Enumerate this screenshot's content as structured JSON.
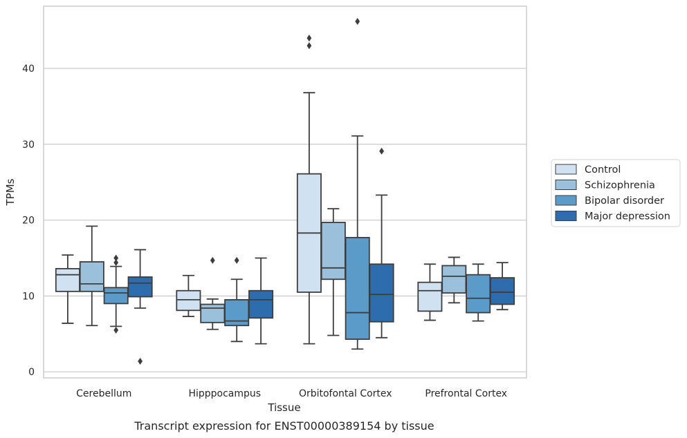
{
  "chart_data": {
    "type": "boxplot",
    "title": "",
    "caption": "Transcript expression for ENST00000389154 by tissue",
    "xlabel": "Tissue",
    "ylabel": "TPMs",
    "ylim": [
      -0.8,
      48.2
    ],
    "yticks": [
      0,
      10,
      20,
      30,
      40
    ],
    "grid": "horizontal",
    "legend_position": "right",
    "categories": [
      "Cerebellum",
      "Hipppocampus",
      "Orbitofontal Cortex",
      "Prefrontal Cortex"
    ],
    "series": [
      {
        "name": "Control",
        "color": "#d0e1f2",
        "boxes": [
          {
            "whisker_low": 6.4,
            "q1": 10.6,
            "median": 12.8,
            "q3": 13.6,
            "whisker_high": 15.4,
            "outliers": []
          },
          {
            "whisker_low": 7.3,
            "q1": 8.1,
            "median": 9.5,
            "q3": 10.7,
            "whisker_high": 12.7,
            "outliers": []
          },
          {
            "whisker_low": 3.7,
            "q1": 10.5,
            "median": 18.3,
            "q3": 26.1,
            "whisker_high": 36.8,
            "outliers": [
              43.0,
              44.0
            ]
          },
          {
            "whisker_low": 6.8,
            "q1": 8.0,
            "median": 10.7,
            "q3": 11.8,
            "whisker_high": 14.2,
            "outliers": []
          }
        ]
      },
      {
        "name": "Schizophrenia",
        "color": "#9ac0dc",
        "boxes": [
          {
            "whisker_low": 6.1,
            "q1": 10.6,
            "median": 11.6,
            "q3": 14.5,
            "whisker_high": 19.2,
            "outliers": []
          },
          {
            "whisker_low": 5.6,
            "q1": 6.5,
            "median": 8.4,
            "q3": 8.9,
            "whisker_high": 9.6,
            "outliers": [
              14.7
            ]
          },
          {
            "whisker_low": 4.8,
            "q1": 12.2,
            "median": 13.7,
            "q3": 19.7,
            "whisker_high": 21.5,
            "outliers": []
          },
          {
            "whisker_low": 9.1,
            "q1": 10.4,
            "median": 12.6,
            "q3": 14.0,
            "whisker_high": 15.1,
            "outliers": []
          }
        ]
      },
      {
        "name": "Bipolar disorder",
        "color": "#5a9bc9",
        "boxes": [
          {
            "whisker_low": 6.0,
            "q1": 9.0,
            "median": 10.4,
            "q3": 11.1,
            "whisker_high": 13.9,
            "outliers": [
              5.5,
              14.4,
              15.0
            ]
          },
          {
            "whisker_low": 4.0,
            "q1": 6.1,
            "median": 6.7,
            "q3": 9.5,
            "whisker_high": 12.2,
            "outliers": [
              14.7
            ]
          },
          {
            "whisker_low": 3.0,
            "q1": 4.3,
            "median": 7.8,
            "q3": 17.7,
            "whisker_high": 31.1,
            "outliers": [
              46.2
            ]
          },
          {
            "whisker_low": 6.7,
            "q1": 7.8,
            "median": 9.7,
            "q3": 12.8,
            "whisker_high": 14.2,
            "outliers": []
          }
        ]
      },
      {
        "name": "Major depression",
        "color": "#2d6dad",
        "boxes": [
          {
            "whisker_low": 8.4,
            "q1": 9.9,
            "median": 11.7,
            "q3": 12.5,
            "whisker_high": 16.1,
            "outliers": [
              1.4
            ]
          },
          {
            "whisker_low": 3.7,
            "q1": 7.1,
            "median": 9.5,
            "q3": 10.7,
            "whisker_high": 15.0,
            "outliers": []
          },
          {
            "whisker_low": 4.5,
            "q1": 6.6,
            "median": 10.2,
            "q3": 14.2,
            "whisker_high": 23.3,
            "outliers": [
              29.1
            ]
          },
          {
            "whisker_low": 8.2,
            "q1": 8.9,
            "median": 10.5,
            "q3": 12.4,
            "whisker_high": 14.4,
            "outliers": []
          }
        ]
      }
    ]
  }
}
